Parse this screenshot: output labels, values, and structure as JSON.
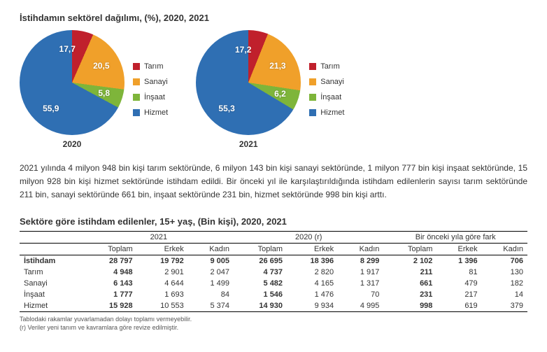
{
  "title": "İstihdamın sektörel dağılımı, (%), 2020, 2021",
  "legend": [
    "Tarım",
    "Sanayi",
    "İnşaat",
    "Hizmet"
  ],
  "colors": {
    "tarim": "#c0202c",
    "sanayi": "#f0a02a",
    "insaat": "#7eb53a",
    "hizmet": "#2f6fb3"
  },
  "charts": [
    {
      "year": "2020",
      "slices": [
        {
          "key": "tarim",
          "value": 17.7,
          "label": "17,7"
        },
        {
          "key": "sanayi",
          "value": 20.5,
          "label": "20,5"
        },
        {
          "key": "insaat",
          "value": 5.8,
          "label": "5,8"
        },
        {
          "key": "hizmet",
          "value": 55.9,
          "label": "55,9"
        }
      ]
    },
    {
      "year": "2021",
      "slices": [
        {
          "key": "tarim",
          "value": 17.2,
          "label": "17,2"
        },
        {
          "key": "sanayi",
          "value": 21.3,
          "label": "21,3"
        },
        {
          "key": "insaat",
          "value": 6.2,
          "label": "6,2"
        },
        {
          "key": "hizmet",
          "value": 55.3,
          "label": "55,3"
        }
      ]
    }
  ],
  "paragraph": "2021 yılında 4 milyon 948 bin kişi tarım sektöründe, 6 milyon 143 bin kişi sanayi sektöründe, 1 milyon 777 bin kişi inşaat sektöründe, 15 milyon 928 bin kişi hizmet sektöründe istihdam edildi. Bir önceki yıl ile karşılaştırıldığında istihdam edilenlerin sayısı tarım sektöründe 211 bin, sanayi sektöründe 661 bin, inşaat sektöründe 231 bin, hizmet sektöründe 998 bin kişi arttı.",
  "subtitle": "Sektöre göre istihdam edilenler, 15+ yaş, (Bin kişi), 2020, 2021",
  "table": {
    "group_headers": [
      "",
      "2021",
      "2020 (r)",
      "Bir önceki yıla göre fark"
    ],
    "sub_headers": [
      "Toplam",
      "Erkek",
      "Kadın",
      "Toplam",
      "Erkek",
      "Kadın",
      "Toplam",
      "Erkek",
      "Kadın"
    ],
    "rows": [
      {
        "label": "İstihdam",
        "vals": [
          "28 797",
          "19 792",
          "9 005",
          "26 695",
          "18 396",
          "8 299",
          "2 102",
          "1 396",
          "706"
        ],
        "bold": true
      },
      {
        "label": "Tarım",
        "vals": [
          "4 948",
          "2 901",
          "2 047",
          "4 737",
          "2 820",
          "1 917",
          "211",
          "81",
          "130"
        ]
      },
      {
        "label": "Sanayi",
        "vals": [
          "6 143",
          "4 644",
          "1 499",
          "5 482",
          "4 165",
          "1 317",
          "661",
          "479",
          "182"
        ]
      },
      {
        "label": "İnşaat",
        "vals": [
          "1 777",
          "1 693",
          "84",
          "1 546",
          "1 476",
          "70",
          "231",
          "217",
          "14"
        ]
      },
      {
        "label": "Hizmet",
        "vals": [
          "15 928",
          "10 553",
          "5 374",
          "14 930",
          "9 934",
          "4 995",
          "998",
          "619",
          "379"
        ]
      }
    ]
  },
  "footnotes": [
    "Tablodaki rakamlar yuvarlamadan dolayı toplamı vermeyebilir.",
    "(r) Veriler yeni tanım ve kavramlara göre revize edilmiştir."
  ]
}
